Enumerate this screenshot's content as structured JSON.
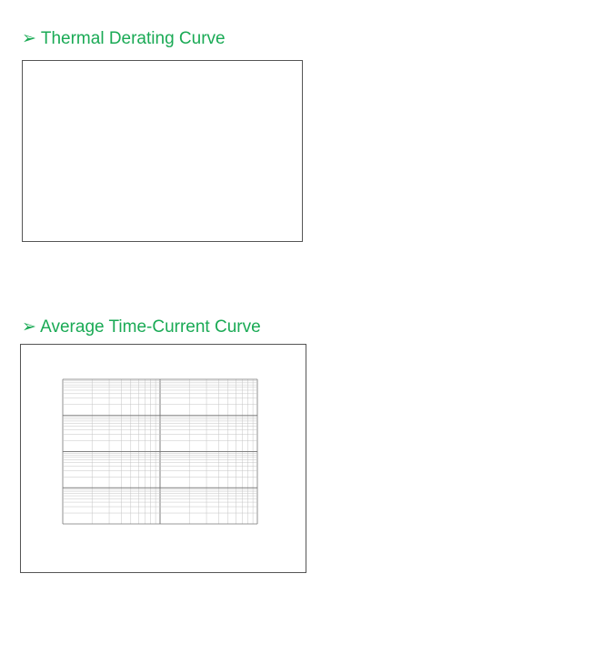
{
  "sections": {
    "thermal_title": "➢ Thermal Derating Curve",
    "average_title": "➢ Average Time-Current Curve"
  },
  "chart_data": [
    {
      "type": "line",
      "title": "",
      "xlabel": "",
      "ylabel": "",
      "xlim": [
        0,
        1
      ],
      "ylim": [
        0,
        1
      ],
      "x_ticks": [],
      "y_ticks": [],
      "grid": true,
      "series": [
        {
          "name": "",
          "x": [],
          "y": []
        }
      ]
    },
    {
      "type": "line",
      "title": "",
      "xlabel": "",
      "ylabel": "",
      "xscale": "log",
      "yscale": "log",
      "xlim": [
        0.1,
        10
      ],
      "ylim": [
        0.01,
        100
      ],
      "x_ticks": [],
      "y_ticks": [],
      "grid": true,
      "legend": "right",
      "curve_letters": [],
      "series": [
        {
          "letter": "",
          "name": "",
          "color": "#000000",
          "x": [],
          "y": []
        }
      ]
    }
  ]
}
